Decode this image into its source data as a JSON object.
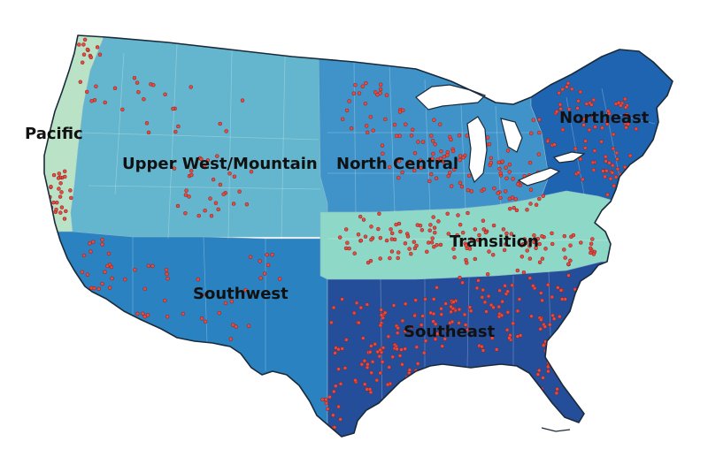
{
  "map": {
    "regions": [
      {
        "key": "pacific",
        "label": "Pacific",
        "color": "#b9e2c6"
      },
      {
        "key": "upper_west",
        "label": "Upper West/Mountain",
        "color": "#63b6cd"
      },
      {
        "key": "north_central",
        "label": "North Central",
        "color": "#3f93c9"
      },
      {
        "key": "northeast",
        "label": "Northeast",
        "color": "#1f64b0"
      },
      {
        "key": "transition",
        "label": "Transition",
        "color": "#8ed8c7"
      },
      {
        "key": "southwest",
        "label": "Southwest",
        "color": "#2a82c0"
      },
      {
        "key": "southeast",
        "label": "Southeast",
        "color": "#244e9a"
      }
    ],
    "point_color": "#e84a3f",
    "border_color": "#1b2a3a",
    "background": "#ffffff"
  }
}
